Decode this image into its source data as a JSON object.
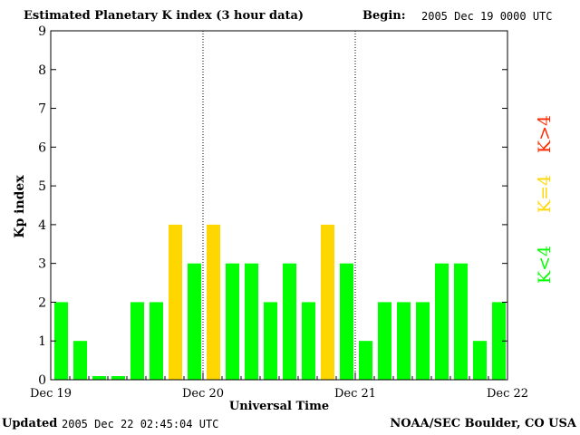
{
  "header": {
    "title": "Estimated Planetary K index (3 hour data)",
    "begin_label": "Begin:",
    "begin_value": "2005 Dec 19 0000 UTC"
  },
  "footer": {
    "updated_label": "Updated",
    "updated_value": "2005 Dec 22 02:45:04 UTC",
    "credit": "NOAA/SEC Boulder, CO USA"
  },
  "legend": {
    "below": "K<4",
    "equal": "K=4",
    "above": "K>4"
  },
  "colors": {
    "below": "#00ff00",
    "equal": "#ffd700",
    "above": "#ff2a00",
    "axis": "#000000"
  },
  "chart_data": {
    "type": "bar",
    "title": "Estimated Planetary K index (3 hour data)",
    "xlabel": "Universal Time",
    "ylabel": "Kp index",
    "ylim": [
      0,
      9
    ],
    "yticks": [
      "0",
      "1",
      "2",
      "3",
      "4",
      "5",
      "6",
      "7",
      "8",
      "9"
    ],
    "xtick_labels": [
      "Dec 19",
      "Dec 20",
      "Dec 21",
      "Dec 22"
    ],
    "interval_hours": 3,
    "values": [
      2,
      1,
      0,
      0,
      2,
      2,
      4,
      3,
      4,
      3,
      3,
      2,
      3,
      2,
      4,
      3,
      1,
      2,
      2,
      2,
      3,
      3,
      1,
      2
    ],
    "day_separators": "dotted"
  }
}
